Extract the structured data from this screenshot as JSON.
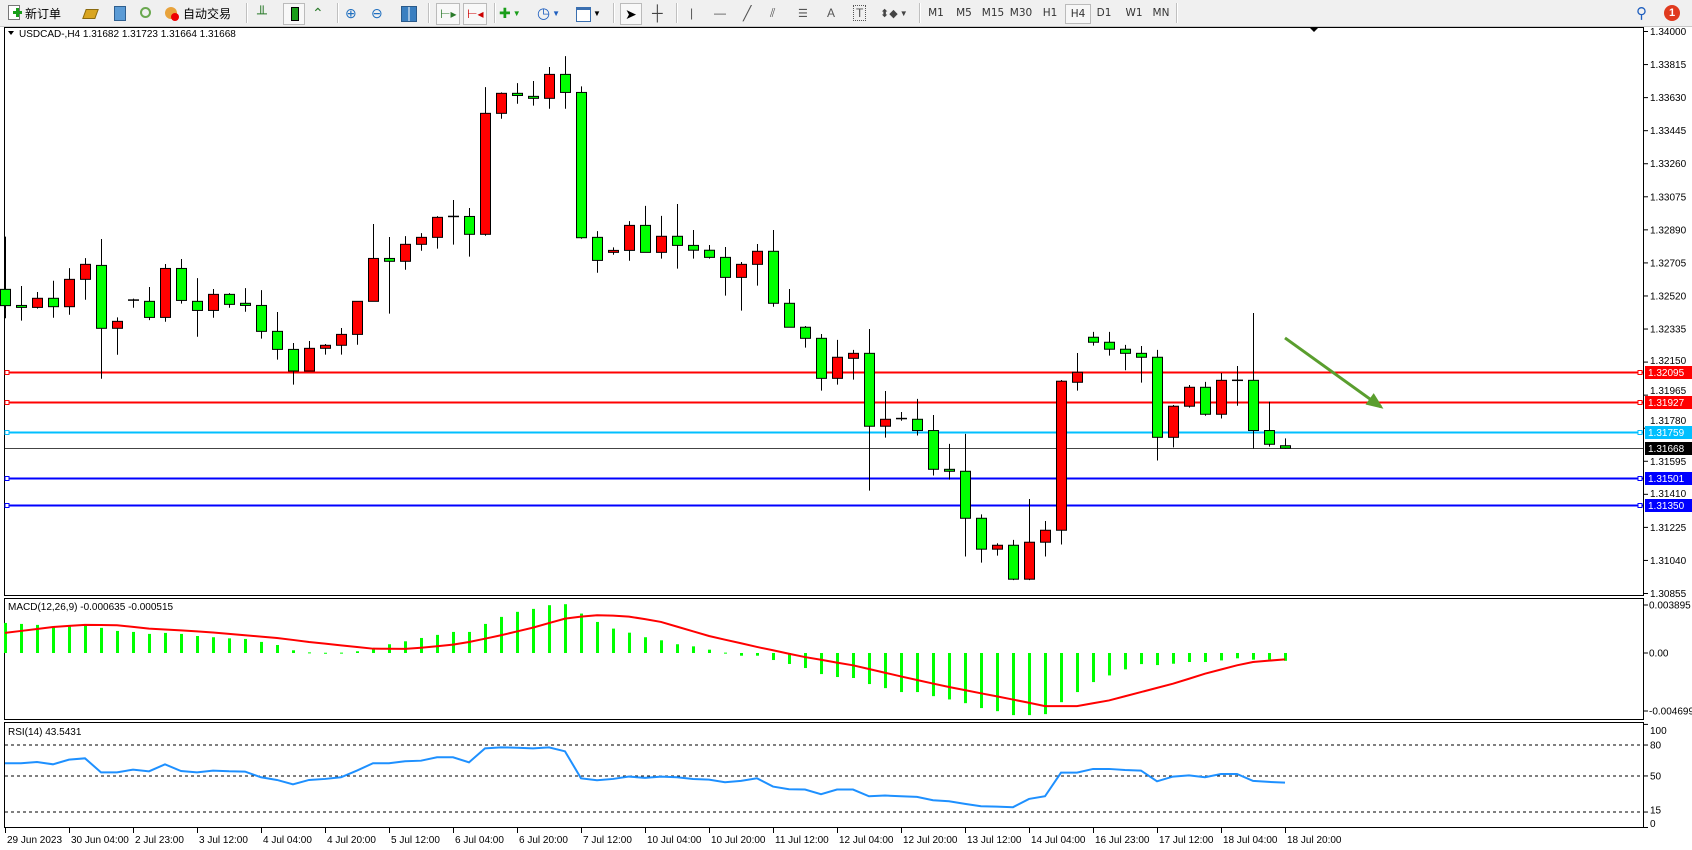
{
  "toolbar": {
    "new_order_label": "新订单",
    "auto_trade_label": "自动交易",
    "icons": [
      "new-order-icon",
      "gold-icon",
      "navigator-icon",
      "signal-icon",
      "auto-trade-icon",
      "bar-chart-icon",
      "candlestick-icon",
      "line-chart-icon",
      "zoom-in-icon",
      "zoom-out-icon",
      "tile-windows-icon",
      "auto-scroll-icon",
      "chart-shift-icon",
      "indicators-icon",
      "periods-icon",
      "templates-icon",
      "cursor-icon",
      "crosshair-icon",
      "vertical-line-icon",
      "horizontal-line-icon",
      "trendline-icon",
      "fibonacci-icon",
      "fibo-channel-icon",
      "text-icon",
      "text-label-icon",
      "arrows-icon",
      "search-icon",
      "notification-icon"
    ],
    "timeframes": [
      "M1",
      "M5",
      "M15",
      "M30",
      "H1",
      "H4",
      "D1",
      "W1",
      "MN"
    ],
    "active_timeframe": "H4",
    "notification_count": "1"
  },
  "chart_data": {
    "type": "candlestick",
    "header": "USDCAD-,H4  1.31682 1.31723 1.31664 1.31668",
    "up_color": "#ff0000",
    "down_color": "#00ff00",
    "ylim": [
      1.30855,
      1.34
    ],
    "price_ticks": [
      "1.34000",
      "1.33815",
      "1.33630",
      "1.33445",
      "1.33260",
      "1.33075",
      "1.32890",
      "1.32705",
      "1.32520",
      "1.32335",
      "1.32150",
      "1.31965",
      "1.31780",
      "1.31595",
      "1.31410",
      "1.31225",
      "1.31040",
      "1.30855"
    ],
    "x_labels": [
      {
        "index": 0,
        "label": "29 Jun 2023"
      },
      {
        "index": 4,
        "label": "30 Jun 04:00"
      },
      {
        "index": 8,
        "label": "2 Jul 23:00"
      },
      {
        "index": 12,
        "label": "3 Jul 12:00"
      },
      {
        "index": 16,
        "label": "4 Jul 04:00"
      },
      {
        "index": 20,
        "label": "4 Jul 20:00"
      },
      {
        "index": 24,
        "label": "5 Jul 12:00"
      },
      {
        "index": 28,
        "label": "6 Jul 04:00"
      },
      {
        "index": 32,
        "label": "6 Jul 20:00"
      },
      {
        "index": 36,
        "label": "7 Jul 12:00"
      },
      {
        "index": 40,
        "label": "10 Jul 04:00"
      },
      {
        "index": 44,
        "label": "10 Jul 20:00"
      },
      {
        "index": 48,
        "label": "11 Jul 12:00"
      },
      {
        "index": 52,
        "label": "12 Jul 04:00"
      },
      {
        "index": 56,
        "label": "12 Jul 20:00"
      },
      {
        "index": 60,
        "label": "13 Jul 12:00"
      },
      {
        "index": 64,
        "label": "14 Jul 04:00"
      },
      {
        "index": 68,
        "label": "16 Jul 23:00"
      },
      {
        "index": 72,
        "label": "17 Jul 12:00"
      },
      {
        "index": 76,
        "label": "18 Jul 04:00"
      },
      {
        "index": 80,
        "label": "18 Jul 20:00"
      }
    ],
    "candles_ohlc": [
      [
        1.32557,
        1.32852,
        1.32395,
        1.32466
      ],
      [
        1.32467,
        1.32576,
        1.32382,
        1.32456
      ],
      [
        1.32456,
        1.32542,
        1.32449,
        1.32507
      ],
      [
        1.32507,
        1.32605,
        1.32398,
        1.3246
      ],
      [
        1.3246,
        1.32676,
        1.32415,
        1.32613
      ],
      [
        1.32613,
        1.32732,
        1.32499,
        1.32697
      ],
      [
        1.32691,
        1.32839,
        1.32057,
        1.32339
      ],
      [
        1.32339,
        1.324,
        1.32191,
        1.32378
      ],
      [
        1.32497,
        1.32505,
        1.32454,
        1.32497
      ],
      [
        1.3249,
        1.3257,
        1.32385,
        1.324
      ],
      [
        1.324,
        1.32699,
        1.32376,
        1.32674
      ],
      [
        1.32674,
        1.32727,
        1.32477,
        1.32495
      ],
      [
        1.3249,
        1.3262,
        1.32292,
        1.32439
      ],
      [
        1.32439,
        1.32559,
        1.32398,
        1.32529
      ],
      [
        1.32529,
        1.32536,
        1.32454,
        1.32473
      ],
      [
        1.32479,
        1.32564,
        1.32432,
        1.32467
      ],
      [
        1.32467,
        1.32553,
        1.32281,
        1.32322
      ],
      [
        1.32322,
        1.3243,
        1.32164,
        1.32221
      ],
      [
        1.32221,
        1.32257,
        1.32024,
        1.321
      ],
      [
        1.321,
        1.32268,
        1.321,
        1.32227
      ],
      [
        1.32227,
        1.32251,
        1.32192,
        1.32244
      ],
      [
        1.32244,
        1.32341,
        1.32192,
        1.32305
      ],
      [
        1.32305,
        1.3249,
        1.32247,
        1.3249
      ],
      [
        1.3249,
        1.32923,
        1.3249,
        1.3273
      ],
      [
        1.3273,
        1.3285,
        1.32421,
        1.32714
      ],
      [
        1.32714,
        1.32855,
        1.32667,
        1.32809
      ],
      [
        1.32809,
        1.32872,
        1.32773,
        1.32848
      ],
      [
        1.32848,
        1.32967,
        1.32785,
        1.3296
      ],
      [
        1.32965,
        1.33057,
        1.32807,
        1.32965
      ],
      [
        1.32965,
        1.33012,
        1.3274,
        1.32865
      ],
      [
        1.32865,
        1.33689,
        1.32857,
        1.33542
      ],
      [
        1.33542,
        1.33659,
        1.33512,
        1.33654
      ],
      [
        1.33654,
        1.33711,
        1.33596,
        1.33642
      ],
      [
        1.33637,
        1.33723,
        1.33585,
        1.33626
      ],
      [
        1.33626,
        1.33801,
        1.33568,
        1.3376
      ],
      [
        1.3376,
        1.33862,
        1.33568,
        1.33659
      ],
      [
        1.33659,
        1.33693,
        1.3284,
        1.32846
      ],
      [
        1.32848,
        1.32883,
        1.3265,
        1.32719
      ],
      [
        1.32764,
        1.32792,
        1.32751,
        1.32775
      ],
      [
        1.32775,
        1.32939,
        1.32717,
        1.32915
      ],
      [
        1.32915,
        1.33024,
        1.32764,
        1.32764
      ],
      [
        1.32764,
        1.32968,
        1.32729,
        1.32854
      ],
      [
        1.32854,
        1.33035,
        1.32673,
        1.32803
      ],
      [
        1.32803,
        1.32889,
        1.32729,
        1.32776
      ],
      [
        1.32776,
        1.32805,
        1.32729,
        1.32736
      ],
      [
        1.32736,
        1.32794,
        1.32522,
        1.32624
      ],
      [
        1.32624,
        1.3271,
        1.32438,
        1.32697
      ],
      [
        1.32697,
        1.32811,
        1.32578,
        1.3277
      ],
      [
        1.3277,
        1.32889,
        1.3246,
        1.32479
      ],
      [
        1.32479,
        1.32559,
        1.32345,
        1.32345
      ],
      [
        1.32345,
        1.32352,
        1.32231,
        1.32283
      ],
      [
        1.32283,
        1.32307,
        1.3199,
        1.32059
      ],
      [
        1.32059,
        1.32274,
        1.32024,
        1.32177
      ],
      [
        1.32171,
        1.32218,
        1.32052,
        1.32199
      ],
      [
        1.32199,
        1.32335,
        1.31431,
        1.31791
      ],
      [
        1.31791,
        1.31988,
        1.31727,
        1.3183
      ],
      [
        1.31834,
        1.31871,
        1.31822,
        1.31834
      ],
      [
        1.3183,
        1.31944,
        1.31739,
        1.31767
      ],
      [
        1.31767,
        1.31854,
        1.31515,
        1.3155
      ],
      [
        1.3155,
        1.31692,
        1.31492,
        1.31539
      ],
      [
        1.31539,
        1.31748,
        1.31062,
        1.31276
      ],
      [
        1.31276,
        1.31298,
        1.31028,
        1.31103
      ],
      [
        1.31103,
        1.31136,
        1.31067,
        1.31125
      ],
      [
        1.31125,
        1.31155,
        1.3093,
        1.30935
      ],
      [
        1.30935,
        1.31384,
        1.3093,
        1.31142
      ],
      [
        1.31142,
        1.31261,
        1.31062,
        1.31209
      ],
      [
        1.31209,
        1.3205,
        1.31129,
        1.32043
      ],
      [
        1.32037,
        1.32201,
        1.3199,
        1.32093
      ],
      [
        1.32289,
        1.32319,
        1.32242,
        1.32261
      ],
      [
        1.32261,
        1.32319,
        1.32186,
        1.32222
      ],
      [
        1.32222,
        1.32246,
        1.32104,
        1.32199
      ],
      [
        1.32199,
        1.3224,
        1.32035,
        1.32177
      ],
      [
        1.32177,
        1.32218,
        1.31599,
        1.31729
      ],
      [
        1.31729,
        1.3191,
        1.31673,
        1.31903
      ],
      [
        1.31903,
        1.32022,
        1.31895,
        1.32009
      ],
      [
        1.32009,
        1.32039,
        1.3185,
        1.31858
      ],
      [
        1.31858,
        1.32089,
        1.31834,
        1.32048
      ],
      [
        1.32048,
        1.32128,
        1.31906,
        1.32048
      ],
      [
        1.32048,
        1.32425,
        1.31666,
        1.31767
      ],
      [
        1.31767,
        1.31929,
        1.31677,
        1.3169
      ],
      [
        1.31682,
        1.31723,
        1.31664,
        1.31668
      ]
    ],
    "horizontal_lines": [
      {
        "price": "1.32095",
        "color": "#ff0000"
      },
      {
        "price": "1.31927",
        "color": "#ff0000"
      },
      {
        "price": "1.31759",
        "color": "#00bfff"
      },
      {
        "price": "1.31501",
        "color": "#0000ff"
      },
      {
        "price": "1.31350",
        "color": "#0000ff"
      }
    ],
    "current_price": "1.31668",
    "annotation_arrow": {
      "color": "#5a9e2e",
      "from": {
        "index": 80,
        "price": 1.32285
      },
      "to": {
        "index": 86,
        "price": 1.31899
      }
    },
    "macd": {
      "label": "MACD(12,26,9) -0.000635 -0.000515",
      "ticks": [
        "0.003895",
        "0.00",
        "-0.004699"
      ],
      "ylim": [
        -0.004699,
        0.003895
      ],
      "hist_color": "#00ff00",
      "signal_color": "#ff0000",
      "histogram": [
        0.00244,
        0.00236,
        0.00228,
        0.00212,
        0.00223,
        0.00223,
        0.00204,
        0.00179,
        0.00171,
        0.00155,
        0.00163,
        0.00155,
        0.00138,
        0.00128,
        0.00119,
        0.00114,
        0.0009,
        0.00065,
        0.00022,
        5e-05,
        2e-05,
        3e-05,
        0.00014,
        0.00035,
        0.00071,
        0.00095,
        0.00122,
        0.00147,
        0.00171,
        0.00171,
        0.00236,
        0.00293,
        0.00334,
        0.00358,
        0.00388,
        0.00396,
        0.0032,
        0.00252,
        0.00198,
        0.00165,
        0.00128,
        0.00103,
        0.00071,
        0.00054,
        0.00027,
        3e-05,
        -0.00022,
        -0.00022,
        -0.00057,
        -0.00089,
        -0.00122,
        -0.00171,
        -0.00195,
        -0.00203,
        -0.00252,
        -0.00285,
        -0.00317,
        -0.00317,
        -0.0035,
        -0.00377,
        -0.00407,
        -0.00447,
        -0.00472,
        -0.00504,
        -0.00504,
        -0.00496,
        -0.00399,
        -0.00317,
        -0.00236,
        -0.00182,
        -0.00133,
        -0.0009,
        -0.00098,
        -0.00087,
        -0.00073,
        -0.00073,
        -0.0006,
        -0.00043,
        -0.00054,
        -0.00054,
        -0.000635
      ],
      "signal": [
        0.00163,
        0.00179,
        0.00195,
        0.00211,
        0.0022,
        0.00228,
        0.00227,
        0.00225,
        0.00212,
        0.00198,
        0.00191,
        0.00184,
        0.00175,
        0.00166,
        0.00155,
        0.00144,
        0.00133,
        0.00122,
        0.00106,
        0.00089,
        0.00076,
        0.00062,
        0.00049,
        0.00035,
        0.00034,
        0.00033,
        0.00043,
        0.00055,
        0.00068,
        0.00089,
        0.00116,
        0.00144,
        0.00175,
        0.00206,
        0.00243,
        0.00279,
        0.00295,
        0.00306,
        0.00303,
        0.00295,
        0.00275,
        0.00252,
        0.00214,
        0.00176,
        0.00138,
        0.00108,
        0.00079,
        0.00049,
        0.00022,
        -6e-05,
        -0.00033,
        -0.00055,
        -0.00078,
        -0.001,
        -0.0013,
        -0.0016,
        -0.0019,
        -0.00219,
        -0.00248,
        -0.00276,
        -0.00301,
        -0.00327,
        -0.00352,
        -0.00378,
        -0.00404,
        -0.00431,
        -0.00431,
        -0.00431,
        -0.00408,
        -0.00385,
        -0.00351,
        -0.00317,
        -0.00283,
        -0.00249,
        -0.00209,
        -0.00168,
        -0.00134,
        -0.001,
        -0.00073,
        -0.00062,
        -0.000515
      ]
    },
    "rsi": {
      "label": "RSI(14) 43.5431",
      "ticks": [
        "100",
        "80",
        "50",
        "15",
        "0"
      ],
      "levels": [
        80,
        50,
        15
      ],
      "color": "#1e90ff",
      "values": [
        62.3,
        62.3,
        63.5,
        61.3,
        65.8,
        67.1,
        53.5,
        53.5,
        56.1,
        54.5,
        61.3,
        54.8,
        53.5,
        55.2,
        54.5,
        54.2,
        48.7,
        46.1,
        41.9,
        46.1,
        47.1,
        48.7,
        55.2,
        62.3,
        62.3,
        64.2,
        64.8,
        68.1,
        68.1,
        63.2,
        76.8,
        77.7,
        77.4,
        76.8,
        77.7,
        73.9,
        47.7,
        45.8,
        47.1,
        49.4,
        48.1,
        49.4,
        48.7,
        47.1,
        46.4,
        43.9,
        45.2,
        47.7,
        39.7,
        37.1,
        36.8,
        32.3,
        36.8,
        36.8,
        30.3,
        31.0,
        30.3,
        29.7,
        26.4,
        25.5,
        22.9,
        20.6,
        20.3,
        19.7,
        27.7,
        30.3,
        53.2,
        53.2,
        56.8,
        56.8,
        55.8,
        55.2,
        44.8,
        49.4,
        50.6,
        48.7,
        51.9,
        51.9,
        45.2,
        44.2,
        43.5431
      ]
    }
  }
}
